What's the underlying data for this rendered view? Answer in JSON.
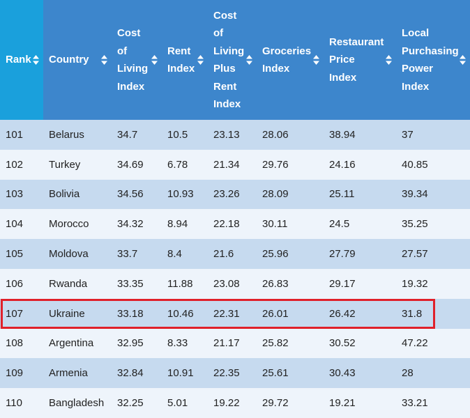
{
  "table": {
    "header": [
      "Rank",
      "Country",
      "Cost of Living Index",
      "Rent Index",
      "Cost of Living Plus Rent Index",
      "Groceries Index",
      "Restaurant Price Index",
      "Local Purchasing Power Index"
    ],
    "rows": [
      [
        101,
        "Belarus",
        34.7,
        10.5,
        23.13,
        28.06,
        38.94,
        37
      ],
      [
        102,
        "Turkey",
        34.69,
        6.78,
        21.34,
        29.76,
        24.16,
        40.85
      ],
      [
        103,
        "Bolivia",
        34.56,
        10.93,
        23.26,
        28.09,
        25.11,
        39.34
      ],
      [
        104,
        "Morocco",
        34.32,
        8.94,
        22.18,
        30.11,
        24.5,
        35.25
      ],
      [
        105,
        "Moldova",
        33.7,
        8.4,
        21.6,
        25.96,
        27.79,
        27.57
      ],
      [
        106,
        "Rwanda",
        33.35,
        11.88,
        23.08,
        26.83,
        29.17,
        19.32
      ],
      [
        107,
        "Ukraine",
        33.18,
        10.46,
        22.31,
        26.01,
        26.42,
        31.8
      ],
      [
        108,
        "Argentina",
        32.95,
        8.33,
        21.17,
        25.82,
        30.52,
        47.22
      ],
      [
        109,
        "Armenia",
        32.84,
        10.91,
        22.35,
        25.61,
        30.43,
        28
      ],
      [
        110,
        "Bangladesh",
        32.25,
        5.01,
        19.22,
        29.72,
        19.21,
        33.21
      ]
    ]
  }
}
